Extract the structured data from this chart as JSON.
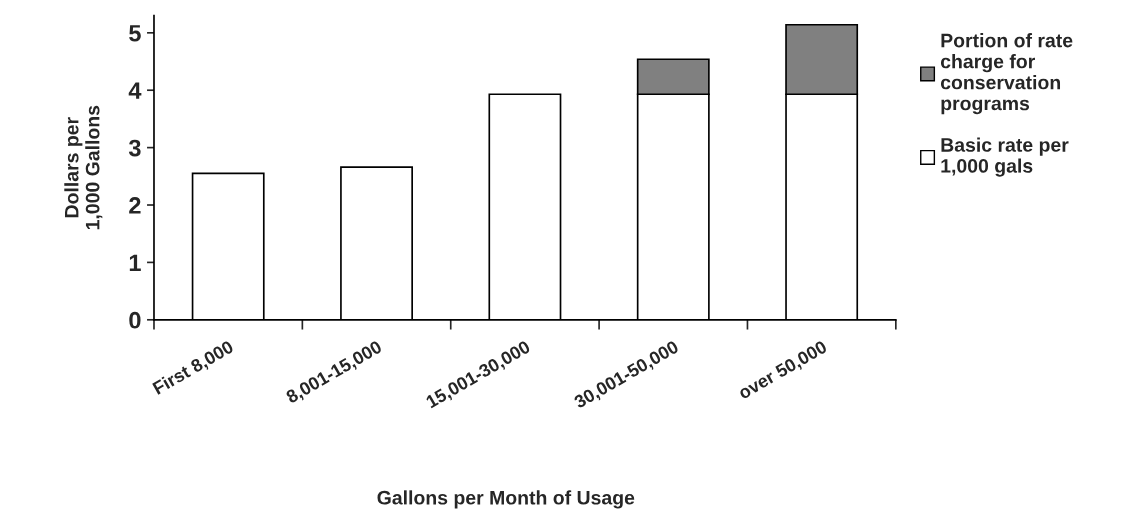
{
  "chart_data": {
    "type": "bar",
    "stacked": true,
    "xlabel": "Gallons per Month of Usage",
    "ylabel": "Dollars per\n1,000 Gallons",
    "categories": [
      "First 8,000",
      "8,001-15,000",
      "15,001-30,000",
      "30,001-50,000",
      "over 50,000"
    ],
    "series": [
      {
        "name": "Basic rate per\n1,000 gals",
        "color": "#ffffff",
        "values": [
          2.55,
          2.66,
          3.93,
          3.93,
          3.93
        ]
      },
      {
        "name": "Portion of rate\ncharge for\nconservation\nprograms",
        "color": "#808080",
        "values": [
          0,
          0,
          0,
          0.61,
          1.21
        ]
      }
    ],
    "ylim": [
      0,
      5.3
    ],
    "yticks": [
      0,
      1,
      2,
      3,
      4,
      5
    ],
    "grid": false,
    "legend": "right"
  }
}
